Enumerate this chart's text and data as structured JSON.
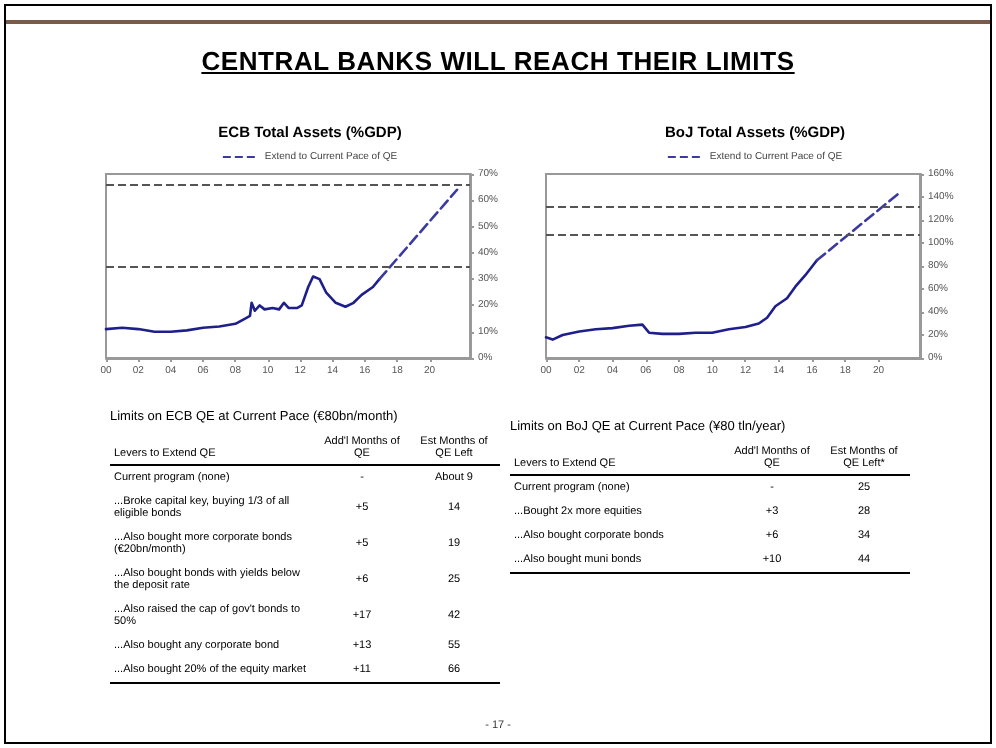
{
  "chart_data": [
    {
      "type": "other",
      "title": "CENTRAL BANKS WILL REACH THEIR LIMITS",
      "annotations": [
        "- 17 -"
      ]
    },
    {
      "type": "line",
      "title": "ECB Total Assets (%GDP)",
      "xlim": [
        2000,
        2022.5
      ],
      "xticks": [
        {
          "value": 2000,
          "label": "00"
        },
        {
          "value": 2002,
          "label": "02"
        },
        {
          "value": 2004,
          "label": "04"
        },
        {
          "value": 2006,
          "label": "06"
        },
        {
          "value": 2008,
          "label": "08"
        },
        {
          "value": 2010,
          "label": "10"
        },
        {
          "value": 2012,
          "label": "12"
        },
        {
          "value": 2014,
          "label": "14"
        },
        {
          "value": 2016,
          "label": "16"
        },
        {
          "value": 2018,
          "label": "18"
        },
        {
          "value": 2020,
          "label": "20"
        }
      ],
      "ylim": [
        0,
        70
      ],
      "yticks": [
        {
          "value": 0,
          "label": "0%"
        },
        {
          "value": 10,
          "label": "10%"
        },
        {
          "value": 20,
          "label": "20%"
        },
        {
          "value": 30,
          "label": "30%"
        },
        {
          "value": 40,
          "label": "40%"
        },
        {
          "value": 50,
          "label": "50%"
        },
        {
          "value": 60,
          "label": "60%"
        },
        {
          "value": 70,
          "label": "70%"
        }
      ],
      "grid": false,
      "legend": "top",
      "marker": "none",
      "series": [
        {
          "color": "#1f1f8c",
          "line_style": "solid",
          "x": [
            2000,
            2001,
            2002,
            2003,
            2004,
            2005,
            2006,
            2007,
            2008,
            2008.6,
            2008.9,
            2009.0,
            2009.2,
            2009.5,
            2009.8,
            2010.3,
            2010.7,
            2011,
            2011.3,
            2011.8,
            2012.1,
            2012.5,
            2012.8,
            2013.2,
            2013.6,
            2014.2,
            2014.8,
            2015.3,
            2015.8,
            2016.5,
            2016.9
          ],
          "values": [
            11,
            11.5,
            11,
            10,
            10,
            10.5,
            11.5,
            12,
            13,
            15,
            16,
            21,
            18,
            20,
            18.5,
            19,
            18.5,
            21,
            19,
            19,
            20,
            27,
            31,
            30,
            25,
            21,
            19.5,
            21,
            24,
            27,
            30
          ]
        },
        {
          "name": "Extend to Current Pace of QE",
          "color": "#3a3aa0",
          "line_style": "dashed",
          "x": [
            2016.9,
            2021.7
          ],
          "values": [
            30,
            64
          ]
        }
      ],
      "ref_lines": [
        {
          "axis": "y",
          "value": 66,
          "color": "#555555",
          "line_style": "dashed"
        },
        {
          "axis": "y",
          "value": 35,
          "color": "#555555",
          "line_style": "dashed"
        }
      ]
    },
    {
      "type": "line",
      "title": "BoJ Total Assets (%GDP)",
      "xlim": [
        2000,
        2022.5
      ],
      "xticks": [
        {
          "value": 2000,
          "label": "00"
        },
        {
          "value": 2002,
          "label": "02"
        },
        {
          "value": 2004,
          "label": "04"
        },
        {
          "value": 2006,
          "label": "06"
        },
        {
          "value": 2008,
          "label": "08"
        },
        {
          "value": 2010,
          "label": "10"
        },
        {
          "value": 2012,
          "label": "12"
        },
        {
          "value": 2014,
          "label": "14"
        },
        {
          "value": 2016,
          "label": "16"
        },
        {
          "value": 2018,
          "label": "18"
        },
        {
          "value": 2020,
          "label": "20"
        }
      ],
      "ylim": [
        0,
        160
      ],
      "yticks": [
        {
          "value": 0,
          "label": "0%"
        },
        {
          "value": 20,
          "label": "20%"
        },
        {
          "value": 40,
          "label": "40%"
        },
        {
          "value": 60,
          "label": "60%"
        },
        {
          "value": 80,
          "label": "80%"
        },
        {
          "value": 100,
          "label": "100%"
        },
        {
          "value": 120,
          "label": "120%"
        },
        {
          "value": 140,
          "label": "140%"
        },
        {
          "value": 160,
          "label": "160%"
        }
      ],
      "grid": false,
      "legend": "top",
      "marker": "none",
      "series": [
        {
          "color": "#1f1f8c",
          "line_style": "solid",
          "x": [
            2000,
            2000.4,
            2001,
            2002,
            2003,
            2004,
            2005,
            2005.8,
            2006.2,
            2007,
            2008,
            2009,
            2010,
            2011,
            2012,
            2012.8,
            2013.3,
            2013.8,
            2014.5,
            2015,
            2015.6,
            2016.3
          ],
          "values": [
            18,
            16,
            20,
            23,
            25,
            26,
            28,
            29,
            22,
            21,
            21,
            22,
            22,
            25,
            27,
            30,
            35,
            45,
            52,
            62,
            72,
            85
          ]
        },
        {
          "name": "Extend to Current Pace of QE",
          "color": "#3a3aa0",
          "line_style": "dashed",
          "x": [
            2016.3,
            2021.3
          ],
          "values": [
            85,
            144
          ]
        }
      ],
      "ref_lines": [
        {
          "axis": "y",
          "value": 131,
          "color": "#555555",
          "line_style": "dashed"
        },
        {
          "axis": "y",
          "value": 107,
          "color": "#555555",
          "line_style": "dashed"
        }
      ]
    },
    {
      "type": "other",
      "title": "Limits on ECB QE at Current Pace (€80bn/month)",
      "annotations": [
        "Levers to Extend QE",
        "Add'l Months of QE",
        "Est Months of QE Left",
        "Current program (none)",
        "-",
        "About 9",
        "...Broke capital key, buying 1/3 of all eligible bonds",
        "+5",
        "14",
        "...Also bought more corporate bonds (€20bn/month)",
        "+5",
        "19",
        "...Also bought bonds with yields below the deposit rate",
        "+6",
        "25",
        "...Also raised the cap of gov't bonds to 50%",
        "+17",
        "42",
        "...Also bought any corporate bond",
        "+13",
        "55",
        "...Also bought 20% of the equity market",
        "+11",
        "66"
      ]
    },
    {
      "type": "other",
      "title": "Limits on BoJ QE at Current Pace (¥80 tln/year)",
      "annotations": [
        "Levers to Extend QE",
        "Add'l Months of QE",
        "Est Months of QE Left*",
        "Current program (none)",
        "-",
        "25",
        "...Bought 2x more equities",
        "+3",
        "28",
        "...Also bought corporate bonds",
        "+6",
        "34",
        "...Also bought muni bonds",
        "+10",
        "44"
      ]
    }
  ]
}
